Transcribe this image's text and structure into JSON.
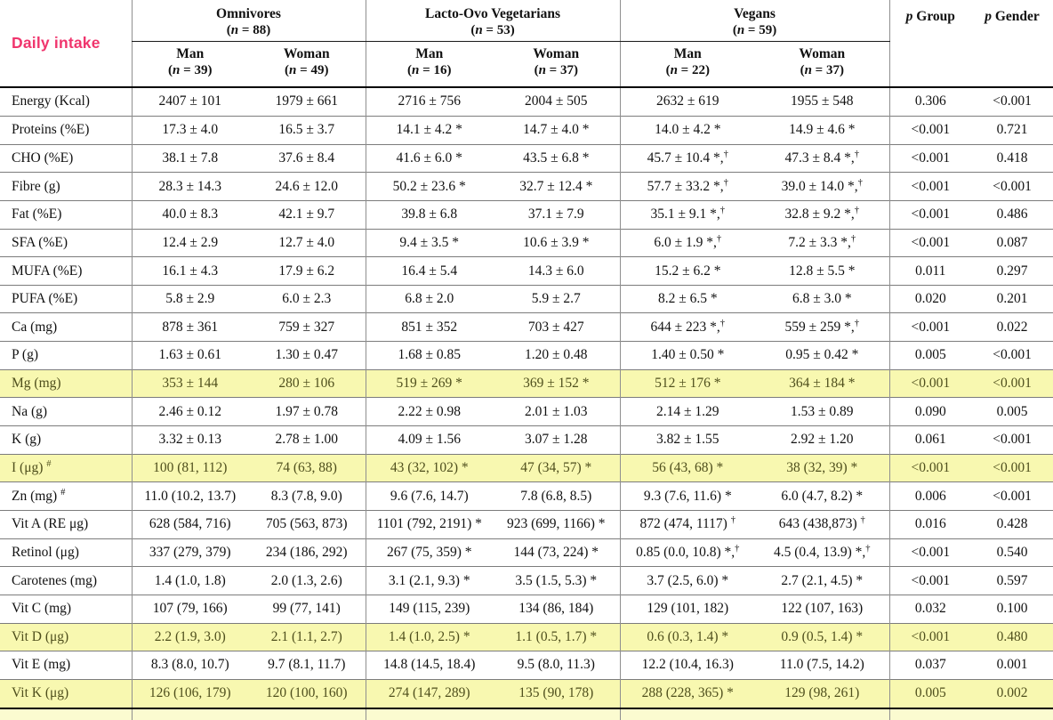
{
  "title": "Daily intake",
  "header": {
    "groups": [
      {
        "name": "Omnivores",
        "n": "(n = 88)",
        "sub": [
          {
            "name": "Man",
            "n": "(n = 39)"
          },
          {
            "name": "Woman",
            "n": "(n = 49)"
          }
        ]
      },
      {
        "name": "Lacto-Ovo Vegetarians",
        "n": "(n = 53)",
        "sub": [
          {
            "name": "Man",
            "n": "(n = 16)"
          },
          {
            "name": "Woman",
            "n": "(n = 37)"
          }
        ]
      },
      {
        "name": "Vegans",
        "n": "(n = 59)",
        "sub": [
          {
            "name": "Man",
            "n": "(n = 22)"
          },
          {
            "name": "Woman",
            "n": "(n = 37)"
          }
        ]
      }
    ],
    "p_columns": [
      {
        "prefix": "p",
        "label": "Group"
      },
      {
        "prefix": "p",
        "label": "Gender"
      }
    ]
  },
  "rows": [
    {
      "label": "Energy (Kcal)",
      "values": [
        "2407 ± 101",
        "1979 ± 661",
        "2716 ± 756",
        "2004 ± 505",
        "2632 ± 619",
        "1955 ± 548"
      ],
      "p_group": "0.306",
      "p_gender": "<0.001",
      "highlight": false
    },
    {
      "label": "Proteins (%E)",
      "values": [
        "17.3 ± 4.0",
        "16.5 ± 3.7",
        "14.1 ± 4.2 *",
        "14.7 ± 4.0 *",
        "14.0 ± 4.2 *",
        "14.9 ± 4.6 *"
      ],
      "p_group": "<0.001",
      "p_gender": "0.721",
      "highlight": false
    },
    {
      "label": "CHO (%E)",
      "values": [
        "38.1 ± 7.8",
        "37.6 ± 8.4",
        "41.6 ± 6.0 *",
        "43.5 ± 6.8 *",
        "45.7 ± 10.4 *,†",
        "47.3 ± 8.4 *,†"
      ],
      "p_group": "<0.001",
      "p_gender": "0.418",
      "highlight": false
    },
    {
      "label": "Fibre (g)",
      "values": [
        "28.3 ± 14.3",
        "24.6 ± 12.0",
        "50.2 ± 23.6 *",
        "32.7 ± 12.4 *",
        "57.7 ± 33.2 *,†",
        "39.0 ± 14.0 *,†"
      ],
      "p_group": "<0.001",
      "p_gender": "<0.001",
      "highlight": false
    },
    {
      "label": "Fat (%E)",
      "values": [
        "40.0 ± 8.3",
        "42.1 ± 9.7",
        "39.8 ± 6.8",
        "37.1 ± 7.9",
        "35.1 ± 9.1 *,†",
        "32.8 ± 9.2 *,†"
      ],
      "p_group": "<0.001",
      "p_gender": "0.486",
      "highlight": false
    },
    {
      "label": "SFA (%E)",
      "values": [
        "12.4 ± 2.9",
        "12.7 ± 4.0",
        "9.4 ± 3.5 *",
        "10.6 ± 3.9 *",
        "6.0 ± 1.9 *,†",
        "7.2 ± 3.3 *,†"
      ],
      "p_group": "<0.001",
      "p_gender": "0.087",
      "highlight": false
    },
    {
      "label": "MUFA (%E)",
      "values": [
        "16.1 ± 4.3",
        "17.9 ± 6.2",
        "16.4 ± 5.4",
        "14.3 ± 6.0",
        "15.2 ± 6.2 *",
        "12.8 ± 5.5 *"
      ],
      "p_group": "0.011",
      "p_gender": "0.297",
      "highlight": false
    },
    {
      "label": "PUFA (%E)",
      "values": [
        "5.8 ± 2.9",
        "6.0 ± 2.3",
        "6.8 ± 2.0",
        "5.9 ± 2.7",
        "8.2 ± 6.5 *",
        "6.8 ± 3.0 *"
      ],
      "p_group": "0.020",
      "p_gender": "0.201",
      "highlight": false
    },
    {
      "label": "Ca (mg)",
      "values": [
        "878 ± 361",
        "759 ± 327",
        "851 ± 352",
        "703 ± 427",
        "644 ± 223 *,†",
        "559 ± 259 *,†"
      ],
      "p_group": "<0.001",
      "p_gender": "0.022",
      "highlight": false
    },
    {
      "label": "P (g)",
      "values": [
        "1.63 ± 0.61",
        "1.30 ± 0.47",
        "1.68 ± 0.85",
        "1.20 ± 0.48",
        "1.40 ± 0.50 *",
        "0.95 ± 0.42 *"
      ],
      "p_group": "0.005",
      "p_gender": "<0.001",
      "highlight": false
    },
    {
      "label": "Mg (mg)",
      "values": [
        "353 ± 144",
        "280 ± 106",
        "519 ± 269 *",
        "369 ± 152 *",
        "512 ± 176 *",
        "364 ± 184 *"
      ],
      "p_group": "<0.001",
      "p_gender": "<0.001",
      "highlight": true
    },
    {
      "label": "Na (g)",
      "values": [
        "2.46 ± 0.12",
        "1.97 ± 0.78",
        "2.22 ± 0.98",
        "2.01 ± 1.03",
        "2.14 ± 1.29",
        "1.53 ± 0.89"
      ],
      "p_group": "0.090",
      "p_gender": "0.005",
      "highlight": false
    },
    {
      "label": "K (g)",
      "values": [
        "3.32 ± 0.13",
        "2.78 ± 1.00",
        "4.09 ± 1.56",
        "3.07 ± 1.28",
        "3.82 ± 1.55",
        "2.92 ± 1.20"
      ],
      "p_group": "0.061",
      "p_gender": "<0.001",
      "highlight": false
    },
    {
      "label": "I (μg) #",
      "values": [
        "100 (81, 112)",
        "74 (63, 88)",
        "43 (32, 102) *",
        "47 (34, 57) *",
        "56 (43, 68) *",
        "38 (32, 39) *"
      ],
      "p_group": "<0.001",
      "p_gender": "<0.001",
      "highlight": true
    },
    {
      "label": "Zn (mg) #",
      "values": [
        "11.0 (10.2, 13.7)",
        "8.3 (7.8, 9.0)",
        "9.6 (7.6, 14.7)",
        "7.8 (6.8, 8.5)",
        "9.3 (7.6, 11.6) *",
        "6.0 (4.7, 8.2) *"
      ],
      "p_group": "0.006",
      "p_gender": "<0.001",
      "highlight": false
    },
    {
      "label": "Vit A (RE μg)",
      "values": [
        "628 (584, 716)",
        "705 (563, 873)",
        "1101 (792, 2191) *",
        "923 (699, 1166) *",
        "872 (474, 1117) †",
        "643 (438,873) †"
      ],
      "p_group": "0.016",
      "p_gender": "0.428",
      "highlight": false
    },
    {
      "label": "Retinol (μg)",
      "values": [
        "337 (279, 379)",
        "234 (186, 292)",
        "267 (75, 359) *",
        "144 (73, 224) *",
        "0.85 (0.0, 10.8) *,†",
        "4.5 (0.4, 13.9) *,†"
      ],
      "p_group": "<0.001",
      "p_gender": "0.540",
      "highlight": false
    },
    {
      "label": "Carotenes (mg)",
      "values": [
        "1.4 (1.0, 1.8)",
        "2.0 (1.3, 2.6)",
        "3.1 (2.1, 9.3) *",
        "3.5 (1.5, 5.3) *",
        "3.7 (2.5, 6.0) *",
        "2.7 (2.1, 4.5) *"
      ],
      "p_group": "<0.001",
      "p_gender": "0.597",
      "highlight": false
    },
    {
      "label": "Vit C (mg)",
      "values": [
        "107 (79, 166)",
        "99 (77, 141)",
        "149 (115, 239)",
        "134 (86, 184)",
        "129 (101, 182)",
        "122 (107, 163)"
      ],
      "p_group": "0.032",
      "p_gender": "0.100",
      "highlight": false
    },
    {
      "label": "Vit D (μg)",
      "values": [
        "2.2 (1.9, 3.0)",
        "2.1 (1.1, 2.7)",
        "1.4 (1.0, 2.5) *",
        "1.1 (0.5, 1.7) *",
        "0.6 (0.3, 1.4) *",
        "0.9 (0.5, 1.4) *"
      ],
      "p_group": "<0.001",
      "p_gender": "0.480",
      "highlight": true
    },
    {
      "label": "Vit E (mg)",
      "values": [
        "8.3 (8.0, 10.7)",
        "9.7 (8.1, 11.7)",
        "14.8 (14.5, 18.4)",
        "9.5 (8.0, 11.3)",
        "12.2 (10.4, 16.3)",
        "11.0 (7.5, 14.2)"
      ],
      "p_group": "0.037",
      "p_gender": "0.001",
      "highlight": false
    },
    {
      "label": "Vit K (μg)",
      "values": [
        "126 (106, 179)",
        "120 (100, 160)",
        "274 (147, 289)",
        "135 (90, 178)",
        "288 (228, 365) *",
        "129 (98, 261)"
      ],
      "p_group": "0.005",
      "p_gender": "0.002",
      "highlight": true
    }
  ],
  "colors": {
    "accent_pink": "#f0356d",
    "row_highlight": "#f8f8b0",
    "bottom_strip": "#fbfbd0"
  }
}
